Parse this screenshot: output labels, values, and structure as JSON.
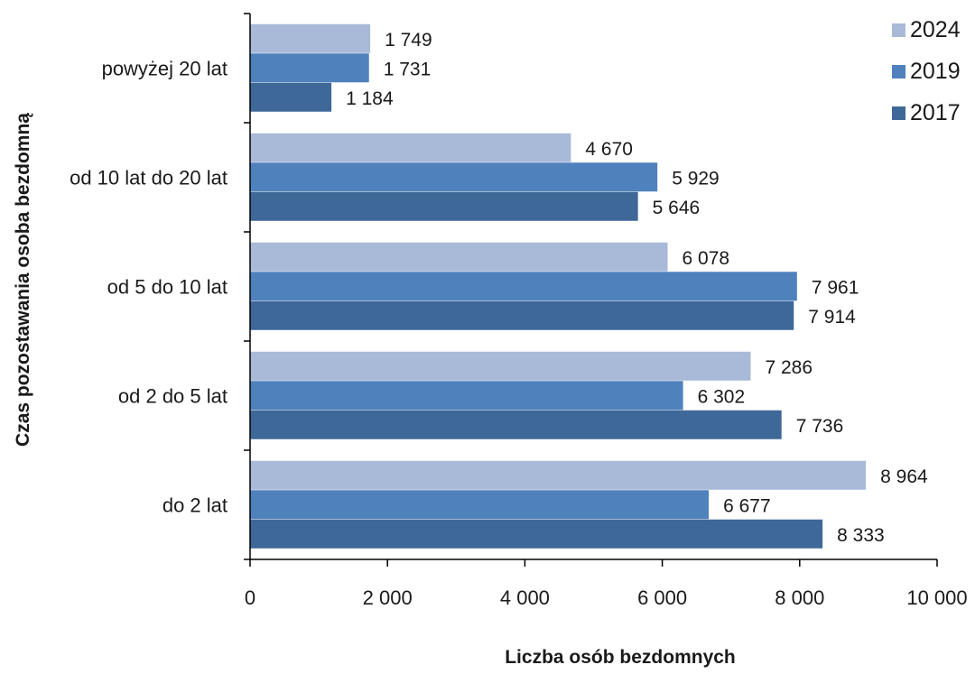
{
  "chart_data": {
    "type": "bar",
    "orientation": "horizontal",
    "categories": [
      "powyżej 20 lat",
      "od 10 lat do 20 lat",
      "od 5 do 10 lat",
      "od 2 do 5 lat",
      "do 2 lat"
    ],
    "series": [
      {
        "name": "2024",
        "color": "#a9b9d8",
        "values": [
          1749,
          4670,
          6078,
          7286,
          8964
        ],
        "labels": [
          "1 749",
          "4 670",
          "6 078",
          "7 286",
          "8 964"
        ]
      },
      {
        "name": "2019",
        "color": "#4f81bd",
        "values": [
          1731,
          5929,
          7961,
          6302,
          6677
        ],
        "labels": [
          "1 731",
          "5 929",
          "7 961",
          "6 302",
          "6 677"
        ]
      },
      {
        "name": "2017",
        "color": "#3e6898",
        "values": [
          1184,
          5646,
          7914,
          7736,
          8333
        ],
        "labels": [
          "1 184",
          "5 646",
          "7 914",
          "7 736",
          "8 333"
        ]
      }
    ],
    "xlabel": "Liczba osób bezdomnych",
    "ylabel": "Czas pozostawania osoba bezdomną",
    "xlim": [
      0,
      10000
    ],
    "xticks": [
      0,
      2000,
      4000,
      6000,
      8000,
      10000
    ],
    "xtick_labels": [
      "0",
      "2 000",
      "4 000",
      "6 000",
      "8 000",
      "10 000"
    ],
    "grid": false,
    "legend_position": "top-right"
  }
}
